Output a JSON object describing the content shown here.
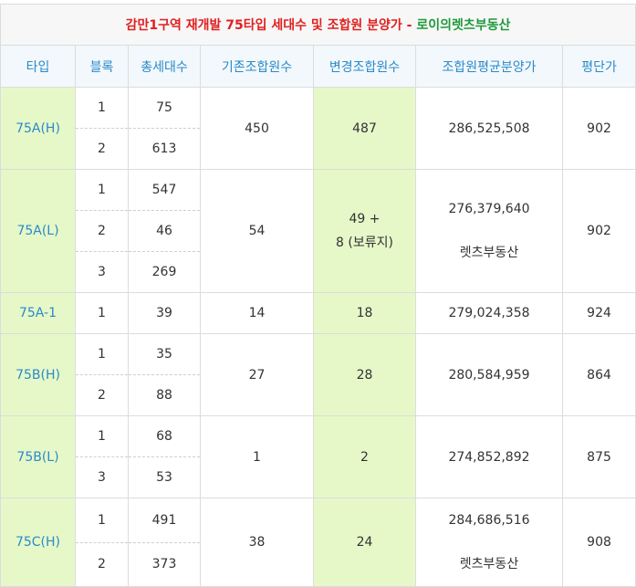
{
  "title": {
    "main": "감만1구역 재개발 75타입 세대수 및 조합원 분양가",
    "sep": " - ",
    "brand": "로이의렛츠부동산"
  },
  "headers": [
    "타입",
    "블록",
    "총세대수",
    "기존조합원수",
    "변경조합원수",
    "조합원평균분양가",
    "평단가"
  ],
  "groups": [
    {
      "type": "75A(H)",
      "blocks": [
        {
          "block": "1",
          "units": "75"
        },
        {
          "block": "2",
          "units": "613"
        }
      ],
      "existing": "450",
      "changed": "487",
      "price": "286,525,508",
      "per_pyeong": "902"
    },
    {
      "type": "75A(L)",
      "blocks": [
        {
          "block": "1",
          "units": "547"
        },
        {
          "block": "2",
          "units": "46"
        },
        {
          "block": "3",
          "units": "269"
        }
      ],
      "existing": "54",
      "changed_line1": "49 +",
      "changed_line2": "8 (보류지)",
      "price": "276,379,640",
      "watermark": "렛츠부동산",
      "per_pyeong": "902"
    },
    {
      "type": "75A-1",
      "blocks": [
        {
          "block": "1",
          "units": "39"
        }
      ],
      "existing": "14",
      "changed": "18",
      "price": "279,024,358",
      "per_pyeong": "924"
    },
    {
      "type": "75B(H)",
      "blocks": [
        {
          "block": "1",
          "units": "35"
        },
        {
          "block": "2",
          "units": "88"
        }
      ],
      "existing": "27",
      "changed": "28",
      "price": "280,584,959",
      "per_pyeong": "864"
    },
    {
      "type": "75B(L)",
      "blocks": [
        {
          "block": "1",
          "units": "68"
        },
        {
          "block": "3",
          "units": "53"
        }
      ],
      "existing": "1",
      "changed": "2",
      "price": "274,852,892",
      "per_pyeong": "875"
    },
    {
      "type": "75C(H)",
      "blocks": [
        {
          "block": "1",
          "units": "491"
        },
        {
          "block": "2",
          "units": "373"
        }
      ],
      "existing": "38",
      "changed": "24",
      "price": "284,686,516",
      "watermark": "렛츠부동산",
      "per_pyeong": "908"
    }
  ]
}
